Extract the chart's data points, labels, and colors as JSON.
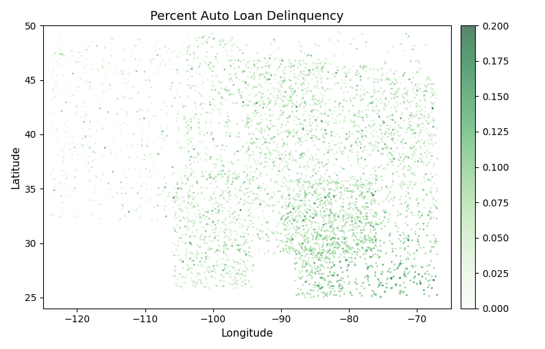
{
  "title": "Percent Auto Loan Delinquency",
  "xlabel": "Longitude",
  "ylabel": "Latitude",
  "xlim": [
    -125,
    -65
  ],
  "ylim": [
    24,
    50
  ],
  "xticks": [
    -120,
    -110,
    -100,
    -90,
    -80,
    -70
  ],
  "yticks": [
    25,
    30,
    35,
    40,
    45,
    50
  ],
  "cmap": "Greens",
  "vmin": 0.0,
  "vmax": 0.2,
  "colorbar_ticks": [
    0.0,
    0.025,
    0.05,
    0.075,
    0.1,
    0.125,
    0.15,
    0.175,
    0.2
  ],
  "marker_size": 4,
  "alpha": 0.65,
  "figsize": [
    7.95,
    5.09
  ],
  "dpi": 100,
  "seed": 42
}
